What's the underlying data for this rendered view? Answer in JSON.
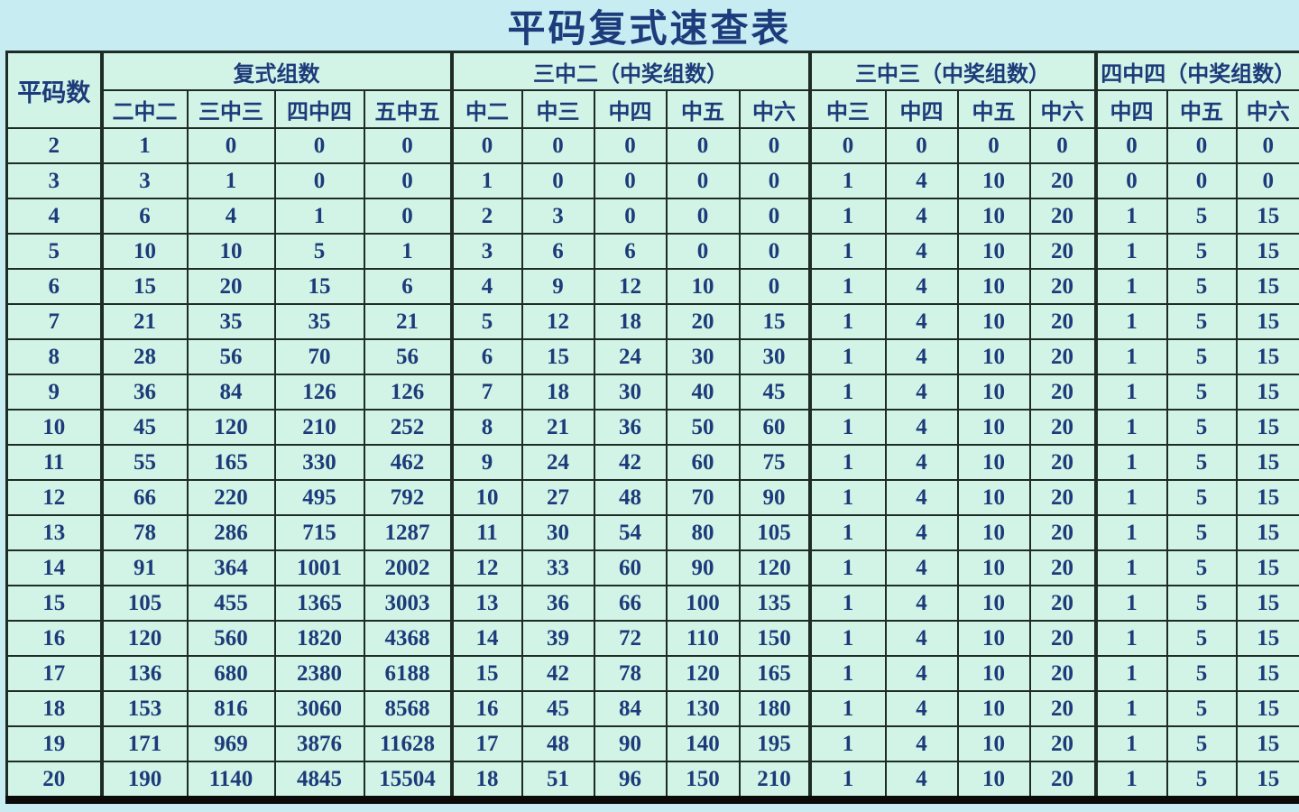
{
  "title": "平码复式速查表",
  "colors": {
    "page_background": "#c7ecf2",
    "cell_background": "#d2f4e6",
    "text": "#1d3b7a",
    "grid_border": "#1e2b27",
    "bottom_bar": "#0b0b0b"
  },
  "chart_data": {
    "type": "table",
    "title": "平码复式速查表",
    "corner_header": "平码数",
    "groups": [
      {
        "label": "复式组数",
        "columns": [
          "二中二",
          "三中三",
          "四中四",
          "五中五"
        ]
      },
      {
        "label": "三中二（中奖组数）",
        "columns": [
          "中二",
          "中三",
          "中四",
          "中五",
          "中六"
        ]
      },
      {
        "label": "三中三（中奖组数）",
        "columns": [
          "中三",
          "中四",
          "中五",
          "中六"
        ]
      },
      {
        "label": "四中四（中奖组数）",
        "columns": [
          "中四",
          "中五",
          "中六"
        ]
      }
    ],
    "rows": [
      [
        2,
        1,
        0,
        0,
        0,
        0,
        0,
        0,
        0,
        0,
        0,
        0,
        0,
        0,
        0,
        0,
        0
      ],
      [
        3,
        3,
        1,
        0,
        0,
        1,
        0,
        0,
        0,
        0,
        1,
        4,
        10,
        20,
        0,
        0,
        0
      ],
      [
        4,
        6,
        4,
        1,
        0,
        2,
        3,
        0,
        0,
        0,
        1,
        4,
        10,
        20,
        1,
        5,
        15
      ],
      [
        5,
        10,
        10,
        5,
        1,
        3,
        6,
        6,
        0,
        0,
        1,
        4,
        10,
        20,
        1,
        5,
        15
      ],
      [
        6,
        15,
        20,
        15,
        6,
        4,
        9,
        12,
        10,
        0,
        1,
        4,
        10,
        20,
        1,
        5,
        15
      ],
      [
        7,
        21,
        35,
        35,
        21,
        5,
        12,
        18,
        20,
        15,
        1,
        4,
        10,
        20,
        1,
        5,
        15
      ],
      [
        8,
        28,
        56,
        70,
        56,
        6,
        15,
        24,
        30,
        30,
        1,
        4,
        10,
        20,
        1,
        5,
        15
      ],
      [
        9,
        36,
        84,
        126,
        126,
        7,
        18,
        30,
        40,
        45,
        1,
        4,
        10,
        20,
        1,
        5,
        15
      ],
      [
        10,
        45,
        120,
        210,
        252,
        8,
        21,
        36,
        50,
        60,
        1,
        4,
        10,
        20,
        1,
        5,
        15
      ],
      [
        11,
        55,
        165,
        330,
        462,
        9,
        24,
        42,
        60,
        75,
        1,
        4,
        10,
        20,
        1,
        5,
        15
      ],
      [
        12,
        66,
        220,
        495,
        792,
        10,
        27,
        48,
        70,
        90,
        1,
        4,
        10,
        20,
        1,
        5,
        15
      ],
      [
        13,
        78,
        286,
        715,
        1287,
        11,
        30,
        54,
        80,
        105,
        1,
        4,
        10,
        20,
        1,
        5,
        15
      ],
      [
        14,
        91,
        364,
        1001,
        2002,
        12,
        33,
        60,
        90,
        120,
        1,
        4,
        10,
        20,
        1,
        5,
        15
      ],
      [
        15,
        105,
        455,
        1365,
        3003,
        13,
        36,
        66,
        100,
        135,
        1,
        4,
        10,
        20,
        1,
        5,
        15
      ],
      [
        16,
        120,
        560,
        1820,
        4368,
        14,
        39,
        72,
        110,
        150,
        1,
        4,
        10,
        20,
        1,
        5,
        15
      ],
      [
        17,
        136,
        680,
        2380,
        6188,
        15,
        42,
        78,
        120,
        165,
        1,
        4,
        10,
        20,
        1,
        5,
        15
      ],
      [
        18,
        153,
        816,
        3060,
        8568,
        16,
        45,
        84,
        130,
        180,
        1,
        4,
        10,
        20,
        1,
        5,
        15
      ],
      [
        19,
        171,
        969,
        3876,
        11628,
        17,
        48,
        90,
        140,
        195,
        1,
        4,
        10,
        20,
        1,
        5,
        15
      ],
      [
        20,
        190,
        1140,
        4845,
        15504,
        18,
        51,
        96,
        150,
        210,
        1,
        4,
        10,
        20,
        1,
        5,
        15
      ]
    ]
  }
}
